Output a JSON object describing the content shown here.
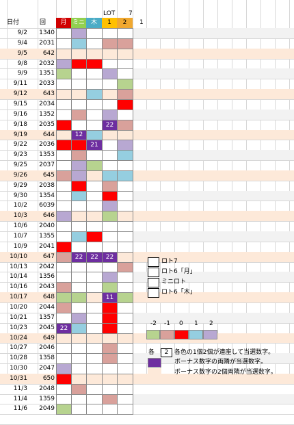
{
  "header": {
    "date_label": "日付",
    "round_label": "回",
    "lot_label": "LOT",
    "seven_label": "7",
    "col_labels": [
      "月",
      "ミニ",
      "木",
      "1",
      "2"
    ],
    "extra_label": "1"
  },
  "colors": {
    "T": "#b7d38f",
    "P": "#b8a8d2",
    "C": "#95cee0",
    "R": "#ff0000",
    "K": "#d9a19b",
    "D": "#6e2ea0",
    "month_header": "#d00000",
    "mini_header": "#92d050",
    "thu_header": "#4bacc6",
    "lot1_header": "#ffc000",
    "lot2_header": "#f0a830",
    "highlight_row": "#fde9d9",
    "alt_row": "#f2f2f2"
  },
  "rows": [
    {
      "date": "9/2",
      "round": "1340",
      "hl": false,
      "cells": [
        "",
        "P",
        "",
        "",
        ""
      ],
      "vals": {}
    },
    {
      "date": "9/4",
      "round": "2031",
      "hl": false,
      "cells": [
        "",
        "C",
        "",
        "K",
        "K"
      ],
      "vals": {}
    },
    {
      "date": "9/5",
      "round": "642",
      "hl": true,
      "cells": [
        "",
        "",
        "",
        "",
        ""
      ],
      "vals": {}
    },
    {
      "date": "9/8",
      "round": "2032",
      "hl": false,
      "cells": [
        "P",
        "R",
        "R",
        "",
        ""
      ],
      "vals": {}
    },
    {
      "date": "9/9",
      "round": "1351",
      "hl": false,
      "cells": [
        "T",
        "",
        "",
        "P",
        ""
      ],
      "vals": {}
    },
    {
      "date": "9/11",
      "round": "2033",
      "hl": false,
      "cells": [
        "",
        "",
        "",
        "",
        "T"
      ],
      "vals": {}
    },
    {
      "date": "9/12",
      "round": "643",
      "hl": true,
      "cells": [
        "",
        "",
        "C",
        "",
        "K"
      ],
      "vals": {}
    },
    {
      "date": "9/15",
      "round": "2034",
      "hl": false,
      "cells": [
        "",
        "",
        "",
        "",
        "R"
      ],
      "vals": {}
    },
    {
      "date": "9/16",
      "round": "1352",
      "hl": false,
      "cells": [
        "",
        "K",
        "",
        "P",
        ""
      ],
      "vals": {}
    },
    {
      "date": "9/18",
      "round": "2035",
      "hl": false,
      "cells": [
        "R",
        "",
        "",
        "D",
        "K"
      ],
      "vals": {
        "3": "22"
      }
    },
    {
      "date": "9/19",
      "round": "644",
      "hl": true,
      "cells": [
        "",
        "D",
        "C",
        "",
        ""
      ],
      "vals": {
        "1": "12"
      }
    },
    {
      "date": "9/22",
      "round": "2036",
      "hl": false,
      "cells": [
        "R",
        "R",
        "D",
        "",
        "P"
      ],
      "vals": {
        "2": "21"
      }
    },
    {
      "date": "9/23",
      "round": "1353",
      "hl": false,
      "cells": [
        "",
        "K",
        "",
        "",
        "C"
      ],
      "vals": {}
    },
    {
      "date": "9/25",
      "round": "2037",
      "hl": false,
      "cells": [
        "",
        "P",
        "T",
        "",
        ""
      ],
      "vals": {}
    },
    {
      "date": "9/26",
      "round": "645",
      "hl": true,
      "cells": [
        "K",
        "P",
        "",
        "C",
        "C"
      ],
      "vals": {}
    },
    {
      "date": "9/29",
      "round": "2038",
      "hl": false,
      "cells": [
        "",
        "R",
        "",
        "K",
        ""
      ],
      "vals": {}
    },
    {
      "date": "9/30",
      "round": "1354",
      "hl": false,
      "cells": [
        "",
        "C",
        "",
        "R",
        ""
      ],
      "vals": {}
    },
    {
      "date": "10/2",
      "round": "6039",
      "hl": false,
      "cells": [
        "",
        "",
        "",
        "P",
        ""
      ],
      "vals": {}
    },
    {
      "date": "10/3",
      "round": "646",
      "hl": true,
      "cells": [
        "P",
        "",
        "",
        "T",
        ""
      ],
      "vals": {}
    },
    {
      "date": "10/6",
      "round": "2040",
      "hl": false,
      "cells": [
        "",
        "",
        "",
        "",
        ""
      ],
      "vals": {}
    },
    {
      "date": "10/7",
      "round": "1355",
      "hl": false,
      "cells": [
        "",
        "C",
        "R",
        "",
        ""
      ],
      "vals": {}
    },
    {
      "date": "10/9",
      "round": "2041",
      "hl": false,
      "cells": [
        "R",
        "",
        "",
        "",
        ""
      ],
      "vals": {}
    },
    {
      "date": "10/10",
      "round": "647",
      "hl": true,
      "cells": [
        "K",
        "D",
        "D",
        "D",
        ""
      ],
      "vals": {
        "1": "22",
        "2": "22",
        "3": "22"
      }
    },
    {
      "date": "10/13",
      "round": "2042",
      "hl": false,
      "cells": [
        "",
        "",
        "",
        "",
        "K"
      ],
      "vals": {}
    },
    {
      "date": "10/14",
      "round": "1356",
      "hl": false,
      "cells": [
        "",
        "",
        "",
        "P",
        ""
      ],
      "vals": {}
    },
    {
      "date": "10/16",
      "round": "2043",
      "hl": false,
      "cells": [
        "K",
        "",
        "",
        "T",
        ""
      ],
      "vals": {}
    },
    {
      "date": "10/17",
      "round": "648",
      "hl": true,
      "cells": [
        "T",
        "T",
        "",
        "D",
        "T"
      ],
      "vals": {
        "3": "11"
      }
    },
    {
      "date": "10/20",
      "round": "2044",
      "hl": false,
      "cells": [
        "K",
        "",
        "",
        "R",
        ""
      ],
      "vals": {}
    },
    {
      "date": "10/21",
      "round": "1357",
      "hl": false,
      "cells": [
        "",
        "P",
        "",
        "R",
        ""
      ],
      "vals": {}
    },
    {
      "date": "10/23",
      "round": "2045",
      "hl": false,
      "cells": [
        "D",
        "C",
        "",
        "R",
        ""
      ],
      "vals": {
        "0": "22"
      }
    },
    {
      "date": "10/24",
      "round": "649",
      "hl": true,
      "cells": [
        "",
        "",
        "",
        "",
        ""
      ],
      "vals": {}
    },
    {
      "date": "10/27",
      "round": "2046",
      "hl": false,
      "cells": [
        "",
        "",
        "",
        "K",
        ""
      ],
      "vals": {}
    },
    {
      "date": "10/28",
      "round": "1358",
      "hl": false,
      "cells": [
        "",
        "",
        "",
        "K",
        ""
      ],
      "vals": {}
    },
    {
      "date": "10/30",
      "round": "2047",
      "hl": false,
      "cells": [
        "P",
        "",
        "",
        "",
        ""
      ],
      "vals": {}
    },
    {
      "date": "10/31",
      "round": "650",
      "hl": true,
      "cells": [
        "R",
        "",
        "",
        "",
        ""
      ],
      "vals": {}
    },
    {
      "date": "11/3",
      "round": "2048",
      "hl": false,
      "cells": [
        "",
        "K",
        "",
        "",
        ""
      ],
      "vals": {}
    },
    {
      "date": "11/4",
      "round": "1359",
      "hl": false,
      "cells": [
        "",
        "",
        "",
        "K",
        ""
      ],
      "vals": {}
    },
    {
      "date": "11/6",
      "round": "2049",
      "hl": false,
      "cells": [
        "T",
        "",
        "",
        "",
        ""
      ],
      "vals": {}
    }
  ],
  "legend": {
    "items": [
      "ロト7",
      "ロト6「月」",
      "ミニロト",
      "ロト6「木」"
    ],
    "scale_labels": [
      "-2",
      "-1",
      "0",
      "1",
      "2"
    ],
    "note1_prefix": "各",
    "note1_num": "2",
    "note1": "各色の1個2個が連座して当選数字。",
    "note2": "ボーナス数字の両隣が当選数字。",
    "note3": "ボーナス数字の2個両隣が当選数字。"
  }
}
